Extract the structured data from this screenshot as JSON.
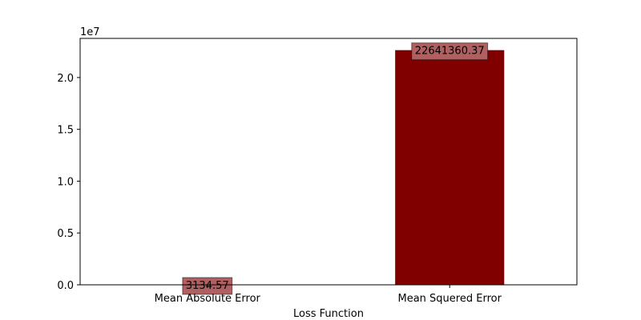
{
  "chart_data": {
    "type": "bar",
    "categories": [
      "Mean Absolute Error",
      "Mean Squered Error"
    ],
    "values": [
      3134.57,
      22641360.37
    ],
    "data_labels": [
      "3134.57",
      "22641360.37"
    ],
    "xlabel": "Loss Function",
    "ylabel": "",
    "ylim": [
      0,
      23774428.4
    ],
    "yticks": [
      0,
      5000000,
      10000000,
      15000000,
      20000000
    ],
    "ytick_labels": [
      "0.0",
      "0.5",
      "1.0",
      "1.5",
      "2.0"
    ],
    "offset_text": "1e7",
    "bar_color": "#800000",
    "label_box_color": "#b06060",
    "grid": false,
    "legend": "none"
  }
}
